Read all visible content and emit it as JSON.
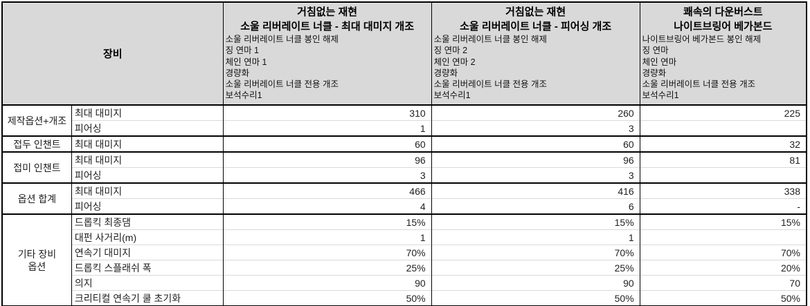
{
  "colors": {
    "header_bg": "#d9d9d9",
    "grid_dark": "#000000",
    "grid_light": "#d9d9d9",
    "text": "#1f1f1f"
  },
  "table": {
    "corner_header": "장비",
    "columns": [
      {
        "title_line1": "거침없는 재현",
        "title_line2": "소울 리버레이트 너클 - 최대 대미지 개조",
        "details": [
          "소울 리버레이트 너클 봉인 해제",
          "징 연마 1",
          "체인 연마 1",
          "경량화",
          "소울 리버레이트 너클 전용 개조",
          "보석수리1"
        ]
      },
      {
        "title_line1": "거침없는 재현",
        "title_line2": "소울 리버레이트 너클 - 피어싱 개조",
        "details": [
          "소울 리버레이트 너클 봉인 해제",
          "징 연마 2",
          "체인 연마 2",
          "경량화",
          "소울 리버레이트 너클 전용 개조",
          "보석수리1"
        ]
      },
      {
        "title_line1": "쾌속의 다운버스트",
        "title_line2": "나이트브링어 베가본드",
        "details": [
          "나이트브링어 베가본드 봉인 해제",
          "징 연마",
          "체인 연마",
          "경량화",
          "소울 리버레이트 너클 전용 개조",
          "보석수리1"
        ]
      }
    ],
    "groups": [
      {
        "label": "제작옵션+개조",
        "rows": [
          {
            "stat": "최대 대미지",
            "values": [
              "310",
              "260",
              "225"
            ]
          },
          {
            "stat": "피어싱",
            "values": [
              "1",
              "3",
              ""
            ]
          }
        ]
      },
      {
        "label": "접두 인챈트",
        "rows": [
          {
            "stat": "최대 대미지",
            "values": [
              "60",
              "60",
              "32"
            ]
          }
        ]
      },
      {
        "label": "접미 인챈트",
        "rows": [
          {
            "stat": "최대 대미지",
            "values": [
              "96",
              "96",
              "81"
            ]
          },
          {
            "stat": "피어싱",
            "values": [
              "3",
              "3",
              ""
            ]
          }
        ]
      },
      {
        "label": "옵션 합계",
        "rows": [
          {
            "stat": "최대 대미지",
            "values": [
              "466",
              "416",
              "338"
            ]
          },
          {
            "stat": "피어싱",
            "values": [
              "4",
              "6",
              "-"
            ]
          }
        ]
      },
      {
        "label": "기타 장비\n옵션",
        "rows": [
          {
            "stat": "드롭킥 최종댐",
            "values": [
              "15%",
              "15%",
              "15%"
            ]
          },
          {
            "stat": "대펀 사거리(m)",
            "values": [
              "1",
              "1",
              ""
            ]
          },
          {
            "stat": "연속기 대미지",
            "values": [
              "70%",
              "70%",
              "70%"
            ]
          },
          {
            "stat": "드롭킥 스플래쉬 폭",
            "values": [
              "25%",
              "25%",
              "20%"
            ]
          },
          {
            "stat": "의지",
            "values": [
              "90",
              "90",
              "70"
            ]
          },
          {
            "stat": "크리티컬 연속기 쿨 초기화",
            "values": [
              "50%",
              "50%",
              "50%"
            ]
          }
        ]
      }
    ]
  }
}
